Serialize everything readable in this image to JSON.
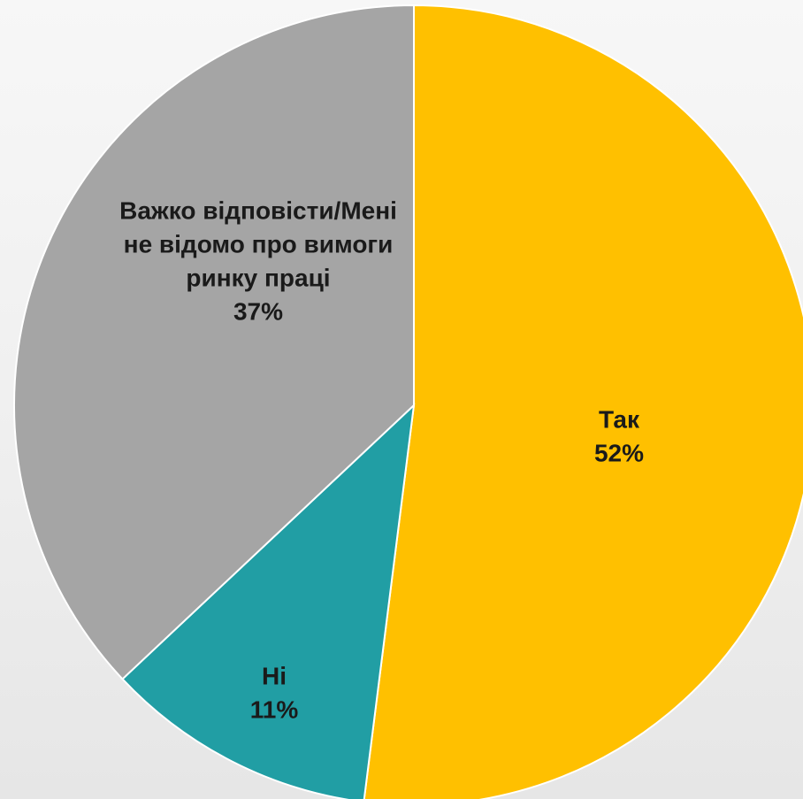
{
  "chart_data": {
    "type": "pie",
    "title": "",
    "start_angle_deg": 0,
    "direction": "clockwise",
    "slices": [
      {
        "label_lines": [
          "Так"
        ],
        "value": 52,
        "value_label": "52%",
        "color": "#ffc000"
      },
      {
        "label_lines": [
          "Ні"
        ],
        "value": 11,
        "value_label": "11%",
        "color": "#219ea4"
      },
      {
        "label_lines": [
          "Важко відповісти/Мені",
          "не відомо про вимоги",
          "ринку праці"
        ],
        "value": 37,
        "value_label": "37%",
        "color": "#a5a5a5"
      }
    ]
  }
}
